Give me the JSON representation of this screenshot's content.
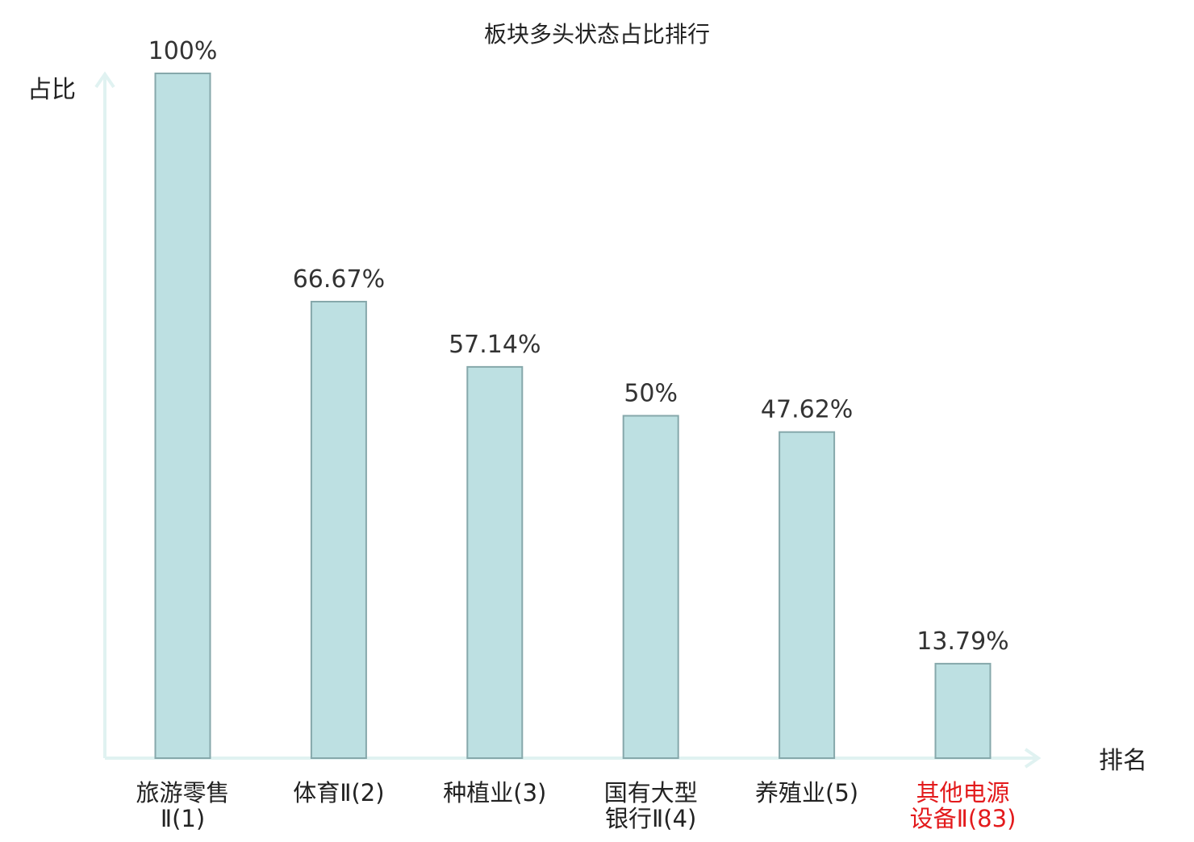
{
  "chart_data": {
    "type": "bar",
    "title": "板块多头状态占比排行",
    "ylabel": "占比",
    "xlabel": "排名",
    "ylim": [
      0,
      100
    ],
    "grid": false,
    "categories": [
      [
        "旅游零售",
        "Ⅱ(1)"
      ],
      [
        "体育Ⅱ(2)"
      ],
      [
        "种植业(3)"
      ],
      [
        "国有大型",
        "银行Ⅱ(4)"
      ],
      [
        "养殖业(5)"
      ],
      [
        "其他电源",
        "设备Ⅱ(83)"
      ]
    ],
    "values": [
      100,
      66.67,
      57.14,
      50,
      47.62,
      13.79
    ],
    "value_labels": [
      "100%",
      "66.67%",
      "57.14%",
      "50%",
      "47.62%",
      "13.79%"
    ],
    "highlight_index": 5,
    "colors": {
      "bar_fill": "#bde0e2",
      "bar_stroke": "#86a8ab",
      "axis": "#e0f2f1",
      "text": "#333333",
      "highlight_text": "#e31a1c"
    }
  }
}
